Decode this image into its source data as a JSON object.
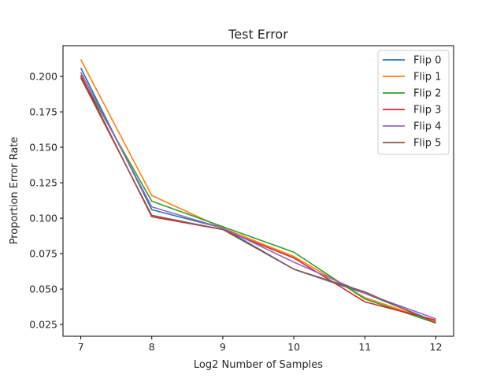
{
  "chart_data": {
    "type": "line",
    "title": "Test Error",
    "xlabel": "Log2 Number of Samples",
    "ylabel": "Proportion Error Rate",
    "xlim": [
      6.75,
      12.25
    ],
    "ylim": [
      0.0167,
      0.2217
    ],
    "xticks": [
      "7",
      "8",
      "9",
      "10",
      "11",
      "12"
    ],
    "yticks": [
      "0.025",
      "0.050",
      "0.075",
      "0.100",
      "0.125",
      "0.150",
      "0.175",
      "0.200"
    ],
    "grid": false,
    "legend_position": "top-right",
    "x": [
      7,
      8,
      9,
      10,
      11,
      12
    ],
    "series": [
      {
        "name": "Flip 0",
        "color": "#1f77b4",
        "values": [
          0.206,
          0.106,
          0.093,
          0.064,
          0.047,
          0.027
        ]
      },
      {
        "name": "Flip 1",
        "color": "#ff7f0e",
        "values": [
          0.212,
          0.116,
          0.093,
          0.073,
          0.044,
          0.027
        ]
      },
      {
        "name": "Flip 2",
        "color": "#2ca02c",
        "values": [
          0.2,
          0.112,
          0.094,
          0.076,
          0.043,
          0.026
        ]
      },
      {
        "name": "Flip 3",
        "color": "#d62728",
        "values": [
          0.201,
          0.101,
          0.092,
          0.072,
          0.041,
          0.028
        ]
      },
      {
        "name": "Flip 4",
        "color": "#9467bd",
        "values": [
          0.203,
          0.108,
          0.093,
          0.069,
          0.047,
          0.029
        ]
      },
      {
        "name": "Flip 5",
        "color": "#8c564b",
        "values": [
          0.199,
          0.102,
          0.092,
          0.064,
          0.048,
          0.026
        ]
      }
    ]
  }
}
